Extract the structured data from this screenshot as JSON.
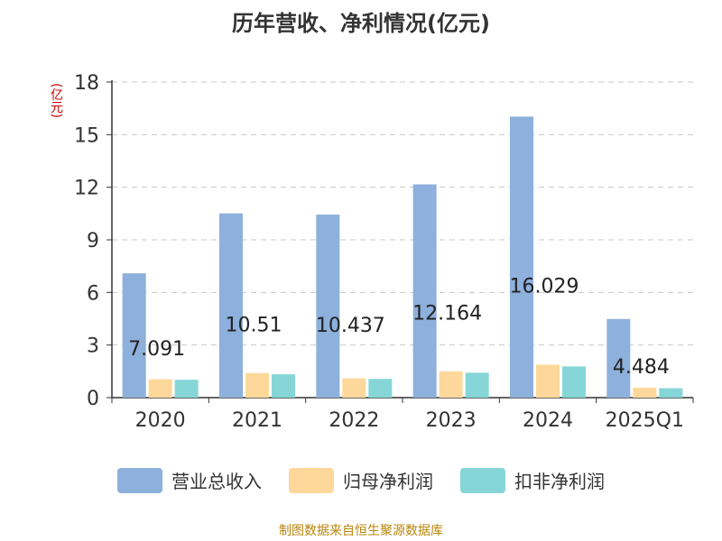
{
  "chart_data": {
    "type": "bar",
    "title": "历年营收、净利情况(亿元)",
    "unit": "(亿元)",
    "categories": [
      "2020",
      "2021",
      "2022",
      "2023",
      "2024",
      "2025Q1"
    ],
    "series": [
      {
        "name": "营业总收入",
        "color": "#8eb0dc",
        "values": [
          7.091,
          10.51,
          10.437,
          12.164,
          16.029,
          4.484
        ],
        "labels": [
          "7.091",
          "10.51",
          "10.437",
          "12.164",
          "16.029",
          "4.484"
        ]
      },
      {
        "name": "归母净利润",
        "color": "#fdd89a",
        "values": [
          1.05,
          1.4,
          1.1,
          1.5,
          1.88,
          0.57
        ]
      },
      {
        "name": "扣非净利润",
        "color": "#86d6d8",
        "values": [
          1.02,
          1.33,
          1.07,
          1.42,
          1.78,
          0.54
        ]
      }
    ],
    "yticks": [
      0,
      3,
      6,
      9,
      12,
      15,
      18
    ],
    "ylim": [
      0,
      18
    ],
    "grid": true,
    "legend": "bottom"
  },
  "source": "制图数据来自恒生聚源数据库"
}
